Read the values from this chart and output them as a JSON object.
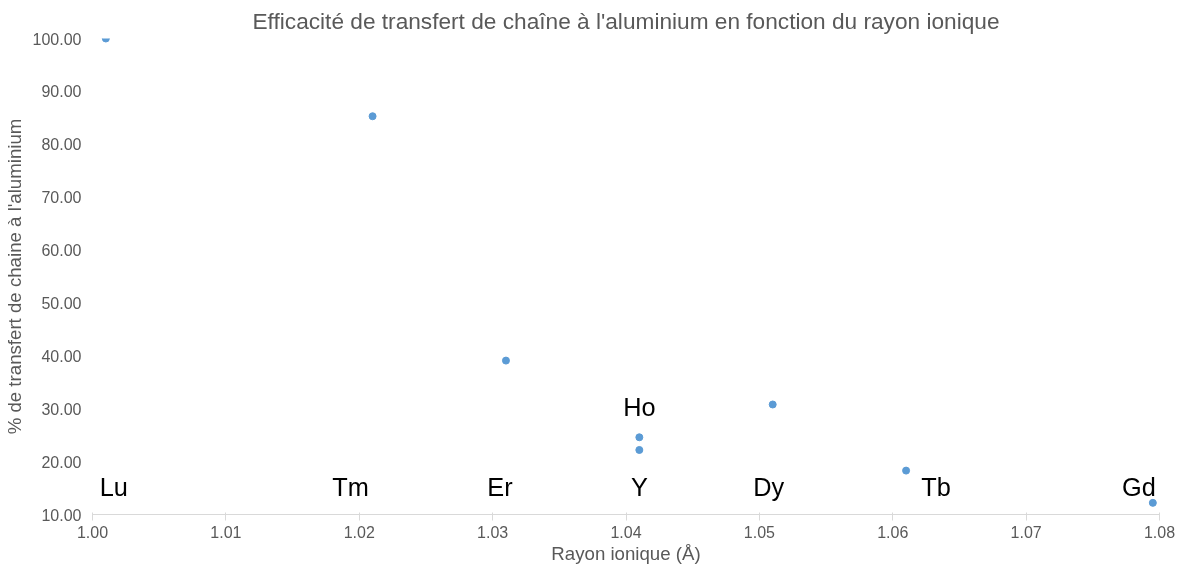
{
  "chart_data": {
    "type": "scatter",
    "title": "Efficacité de transfert de chaîne à l'aluminium en fonction du rayon ionique",
    "xlabel": "Rayon ionique (Å)",
    "ylabel": "% de transfert de chaine à l'aluminium",
    "x": [
      1.001,
      1.021,
      1.031,
      1.041,
      1.041,
      1.051,
      1.061,
      1.0795
    ],
    "series": [
      {
        "color": "#5b9bd5",
        "values": [
          100.0,
          85.3,
          39.1,
          24.6,
          22.2,
          30.8,
          18.3,
          12.2
        ]
      }
    ],
    "marker": "circle",
    "grid": false,
    "xlim": [
      1.0,
      1.08
    ],
    "xticks": [
      {
        "value": 1.0,
        "label": "1.00"
      },
      1.01,
      1.02,
      1.03,
      1.04,
      1.05,
      1.06,
      1.07,
      1.08
    ],
    "ylim": [
      10,
      100
    ],
    "yticks": [
      {
        "value": 10,
        "label": "10.00"
      },
      {
        "value": 20,
        "label": "20.00"
      },
      {
        "value": 30,
        "label": "30.00"
      },
      {
        "value": 40,
        "label": "40.00"
      },
      {
        "value": 50,
        "label": "50.00"
      },
      {
        "value": 60,
        "label": "60.00"
      },
      {
        "value": 70,
        "label": "70.00"
      },
      {
        "value": 80,
        "label": "80.00"
      },
      {
        "value": 90,
        "label": "90.00"
      },
      {
        "value": 100,
        "label": "100.00"
      }
    ],
    "annotations": [
      "Lu",
      "Tm",
      "Er",
      "Ho",
      "Y",
      "Dy",
      "Tb",
      "Gd"
    ]
  }
}
